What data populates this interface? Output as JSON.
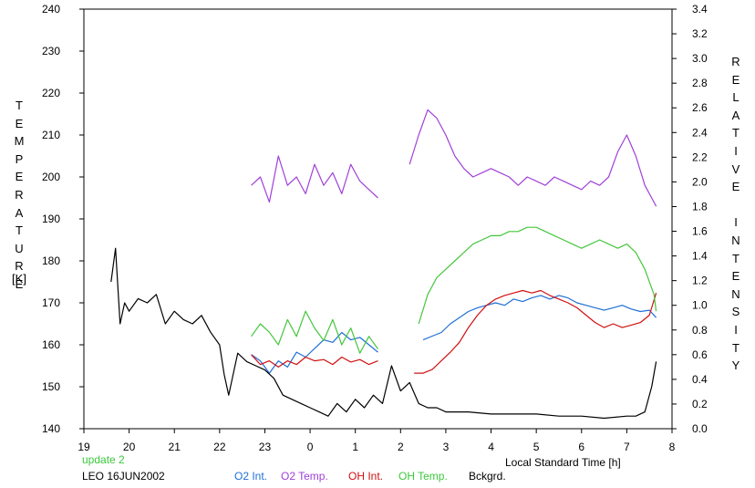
{
  "chart_data": {
    "type": "line",
    "xlabel": "Local Standard Time [h]",
    "ylabel_left": "TEMPERATURE",
    "ylabel_left_unit": "[K]",
    "ylabel_right": "RELATIVE INTENSITY",
    "x_ticks": [
      "19",
      "20",
      "21",
      "22",
      "23",
      "0",
      "1",
      "2",
      "3",
      "4",
      "5",
      "6",
      "7",
      "8"
    ],
    "x_range_hours_since_19": [
      0,
      13
    ],
    "ylim_left": [
      140,
      240
    ],
    "ylim_right": [
      0.0,
      3.4
    ],
    "y_ticks_left": [
      "140",
      "150",
      "160",
      "170",
      "180",
      "190",
      "200",
      "210",
      "220",
      "230",
      "240"
    ],
    "y_ticks_right": [
      "0.0",
      "0.2",
      "0.4",
      "0.6",
      "0.8",
      "1.0",
      "1.2",
      "1.4",
      "1.6",
      "1.8",
      "2.0",
      "2.2",
      "2.4",
      "2.6",
      "2.8",
      "3.0",
      "3.2",
      "3.4"
    ],
    "grid": false,
    "legend_position": "bottom",
    "annotations": [
      "update 2",
      "LEO 16JUN2002"
    ],
    "series": [
      {
        "name": "O2 Int.",
        "color": "#1f6fd6",
        "axis": "right",
        "segments": [
          [
            [
              3.7,
              0.6
            ],
            [
              3.9,
              0.55
            ],
            [
              4.1,
              0.45
            ],
            [
              4.3,
              0.55
            ],
            [
              4.5,
              0.5
            ],
            [
              4.7,
              0.62
            ],
            [
              4.9,
              0.58
            ],
            [
              5.1,
              0.65
            ],
            [
              5.3,
              0.72
            ],
            [
              5.5,
              0.7
            ],
            [
              5.7,
              0.78
            ],
            [
              5.9,
              0.72
            ],
            [
              6.1,
              0.74
            ],
            [
              6.3,
              0.68
            ],
            [
              6.5,
              0.62
            ]
          ],
          [
            [
              7.5,
              0.72
            ],
            [
              7.7,
              0.75
            ],
            [
              7.9,
              0.78
            ],
            [
              8.1,
              0.85
            ],
            [
              8.3,
              0.9
            ],
            [
              8.5,
              0.95
            ],
            [
              8.7,
              0.98
            ],
            [
              8.9,
              1.0
            ],
            [
              9.1,
              1.02
            ],
            [
              9.3,
              1.0
            ],
            [
              9.5,
              1.05
            ],
            [
              9.7,
              1.03
            ],
            [
              9.9,
              1.06
            ],
            [
              10.1,
              1.08
            ],
            [
              10.3,
              1.05
            ],
            [
              10.5,
              1.08
            ],
            [
              10.7,
              1.06
            ],
            [
              10.9,
              1.02
            ],
            [
              11.1,
              1.0
            ],
            [
              11.3,
              0.98
            ],
            [
              11.5,
              0.96
            ],
            [
              11.7,
              0.98
            ],
            [
              11.9,
              1.0
            ],
            [
              12.1,
              0.97
            ],
            [
              12.3,
              0.95
            ],
            [
              12.5,
              0.96
            ],
            [
              12.65,
              0.9
            ]
          ]
        ]
      },
      {
        "name": "O2 Temp.",
        "color": "#a040d8",
        "axis": "left",
        "segments": [
          [
            [
              3.7,
              198
            ],
            [
              3.9,
              200
            ],
            [
              4.1,
              194
            ],
            [
              4.3,
              205
            ],
            [
              4.5,
              198
            ],
            [
              4.7,
              200
            ],
            [
              4.9,
              196
            ],
            [
              5.1,
              203
            ],
            [
              5.3,
              198
            ],
            [
              5.5,
              201
            ],
            [
              5.7,
              196
            ],
            [
              5.9,
              203
            ],
            [
              6.1,
              199
            ],
            [
              6.3,
              197
            ],
            [
              6.5,
              195
            ]
          ],
          [
            [
              7.2,
              203
            ],
            [
              7.4,
              210
            ],
            [
              7.6,
              216
            ],
            [
              7.8,
              214
            ],
            [
              8.0,
              210
            ],
            [
              8.2,
              205
            ],
            [
              8.4,
              202
            ],
            [
              8.6,
              200
            ],
            [
              8.8,
              201
            ],
            [
              9.0,
              202
            ],
            [
              9.2,
              201
            ],
            [
              9.4,
              200
            ],
            [
              9.6,
              198
            ],
            [
              9.8,
              200
            ],
            [
              10.0,
              199
            ],
            [
              10.2,
              198
            ],
            [
              10.4,
              200
            ],
            [
              10.6,
              199
            ],
            [
              10.8,
              198
            ],
            [
              11.0,
              197
            ],
            [
              11.2,
              199
            ],
            [
              11.4,
              198
            ],
            [
              11.6,
              200
            ],
            [
              11.8,
              206
            ],
            [
              12.0,
              210
            ],
            [
              12.2,
              205
            ],
            [
              12.4,
              198
            ],
            [
              12.6,
              194
            ],
            [
              12.65,
              193
            ]
          ]
        ]
      },
      {
        "name": "OH Int.",
        "color": "#d01010",
        "axis": "right",
        "segments": [
          [
            [
              3.7,
              0.6
            ],
            [
              3.9,
              0.52
            ],
            [
              4.1,
              0.55
            ],
            [
              4.3,
              0.5
            ],
            [
              4.5,
              0.55
            ],
            [
              4.7,
              0.52
            ],
            [
              4.9,
              0.58
            ],
            [
              5.1,
              0.55
            ],
            [
              5.3,
              0.56
            ],
            [
              5.5,
              0.52
            ],
            [
              5.7,
              0.58
            ],
            [
              5.9,
              0.54
            ],
            [
              6.1,
              0.56
            ],
            [
              6.3,
              0.52
            ],
            [
              6.5,
              0.55
            ]
          ],
          [
            [
              7.3,
              0.45
            ],
            [
              7.5,
              0.45
            ],
            [
              7.7,
              0.48
            ],
            [
              7.9,
              0.55
            ],
            [
              8.1,
              0.62
            ],
            [
              8.3,
              0.7
            ],
            [
              8.5,
              0.82
            ],
            [
              8.7,
              0.92
            ],
            [
              8.9,
              1.0
            ],
            [
              9.1,
              1.05
            ],
            [
              9.3,
              1.08
            ],
            [
              9.5,
              1.1
            ],
            [
              9.7,
              1.12
            ],
            [
              9.9,
              1.1
            ],
            [
              10.1,
              1.12
            ],
            [
              10.3,
              1.08
            ],
            [
              10.5,
              1.05
            ],
            [
              10.7,
              1.02
            ],
            [
              10.9,
              0.98
            ],
            [
              11.1,
              0.92
            ],
            [
              11.3,
              0.86
            ],
            [
              11.5,
              0.82
            ],
            [
              11.7,
              0.85
            ],
            [
              11.9,
              0.82
            ],
            [
              12.1,
              0.84
            ],
            [
              12.3,
              0.86
            ],
            [
              12.5,
              0.92
            ],
            [
              12.65,
              1.1
            ]
          ]
        ]
      },
      {
        "name": "OH Temp.",
        "color": "#44c63c",
        "axis": "left",
        "segments": [
          [
            [
              3.7,
              162
            ],
            [
              3.9,
              165
            ],
            [
              4.1,
              163
            ],
            [
              4.3,
              160
            ],
            [
              4.5,
              166
            ],
            [
              4.7,
              162
            ],
            [
              4.9,
              168
            ],
            [
              5.1,
              164
            ],
            [
              5.3,
              161
            ],
            [
              5.5,
              166
            ],
            [
              5.7,
              160
            ],
            [
              5.9,
              164
            ],
            [
              6.1,
              158
            ],
            [
              6.3,
              162
            ],
            [
              6.5,
              159
            ]
          ],
          [
            [
              7.4,
              165
            ],
            [
              7.6,
              172
            ],
            [
              7.8,
              176
            ],
            [
              8.0,
              178
            ],
            [
              8.2,
              180
            ],
            [
              8.4,
              182
            ],
            [
              8.6,
              184
            ],
            [
              8.8,
              185
            ],
            [
              9.0,
              186
            ],
            [
              9.2,
              186
            ],
            [
              9.4,
              187
            ],
            [
              9.6,
              187
            ],
            [
              9.8,
              188
            ],
            [
              10.0,
              188
            ],
            [
              10.2,
              187
            ],
            [
              10.4,
              186
            ],
            [
              10.6,
              185
            ],
            [
              10.8,
              184
            ],
            [
              11.0,
              183
            ],
            [
              11.2,
              184
            ],
            [
              11.4,
              185
            ],
            [
              11.6,
              184
            ],
            [
              11.8,
              183
            ],
            [
              12.0,
              184
            ],
            [
              12.2,
              182
            ],
            [
              12.4,
              178
            ],
            [
              12.6,
              172
            ],
            [
              12.65,
              168
            ]
          ]
        ]
      },
      {
        "name": "Bckgrd.",
        "color": "#000000",
        "axis": "left",
        "segments": [
          [
            [
              0.6,
              175
            ],
            [
              0.7,
              183
            ],
            [
              0.8,
              165
            ],
            [
              0.9,
              170
            ],
            [
              1.0,
              168
            ],
            [
              1.2,
              171
            ],
            [
              1.4,
              170
            ],
            [
              1.6,
              172
            ],
            [
              1.8,
              165
            ],
            [
              2.0,
              168
            ],
            [
              2.2,
              166
            ],
            [
              2.4,
              165
            ],
            [
              2.6,
              167
            ],
            [
              2.8,
              163
            ],
            [
              3.0,
              160
            ],
            [
              3.1,
              153
            ],
            [
              3.2,
              148
            ],
            [
              3.4,
              158
            ],
            [
              3.6,
              156
            ],
            [
              3.8,
              155
            ],
            [
              4.0,
              154
            ],
            [
              4.2,
              152
            ],
            [
              4.4,
              148
            ],
            [
              4.6,
              147
            ],
            [
              4.8,
              146
            ],
            [
              5.0,
              145
            ],
            [
              5.2,
              144
            ],
            [
              5.4,
              143
            ],
            [
              5.6,
              146
            ],
            [
              5.8,
              144
            ],
            [
              6.0,
              147
            ],
            [
              6.2,
              145
            ],
            [
              6.4,
              148
            ],
            [
              6.6,
              146
            ],
            [
              6.8,
              155
            ],
            [
              7.0,
              149
            ],
            [
              7.2,
              151
            ],
            [
              7.4,
              146
            ],
            [
              7.6,
              145
            ],
            [
              7.8,
              145
            ],
            [
              8.0,
              144
            ],
            [
              8.5,
              144
            ],
            [
              9.0,
              143.5
            ],
            [
              9.5,
              143.5
            ],
            [
              10.0,
              143.5
            ],
            [
              10.5,
              143
            ],
            [
              11.0,
              143
            ],
            [
              11.5,
              142.5
            ],
            [
              12.0,
              143
            ],
            [
              12.2,
              143
            ],
            [
              12.4,
              144
            ],
            [
              12.55,
              150
            ],
            [
              12.65,
              156
            ]
          ]
        ]
      }
    ]
  }
}
